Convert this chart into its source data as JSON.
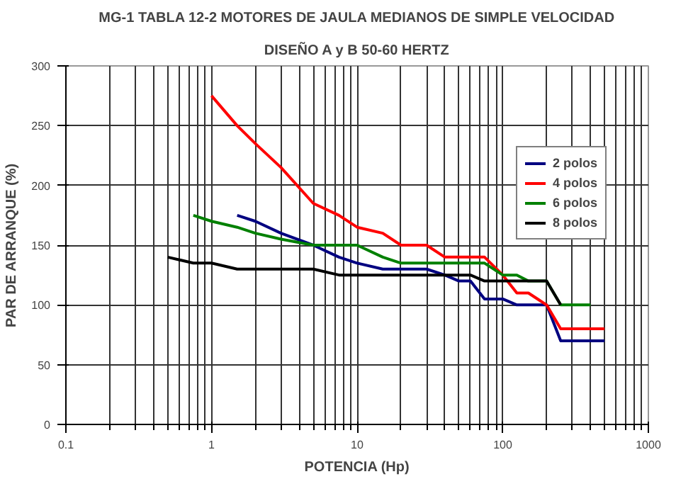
{
  "chart_data": {
    "type": "line",
    "title": "MG-1 TABLA 12-2 MOTORES DE JAULA MEDIANOS DE SIMPLE VELOCIDAD",
    "subtitle": "DISEÑO A y B 50-60 HERTZ",
    "xlabel": "POTENCIA (Hp)",
    "ylabel": "PAR DE ARRANQUE (%)",
    "log": "x",
    "xlim": [
      0.1,
      1000
    ],
    "xticks": [
      0.1,
      1,
      10,
      100,
      1000
    ],
    "ylim": [
      0,
      300
    ],
    "yticks": [
      0,
      50,
      100,
      150,
      200,
      250,
      300
    ],
    "grid": true,
    "legend": "right",
    "marker": "none",
    "line_style": "solid",
    "series": [
      {
        "name": "2 polos",
        "color": "#000080",
        "x": [
          1.5,
          2,
          3,
          5,
          7.5,
          10,
          15,
          20,
          25,
          30,
          40,
          50,
          60,
          75,
          100,
          125,
          150,
          200,
          250,
          300,
          350,
          400,
          450,
          500
        ],
        "values": [
          175,
          170,
          160,
          150,
          140,
          135,
          130,
          130,
          130,
          130,
          125,
          120,
          120,
          105,
          105,
          100,
          100,
          100,
          70,
          70,
          70,
          70,
          70,
          70
        ]
      },
      {
        "name": "4 polos",
        "color": "#ff0000",
        "x": [
          1,
          1.5,
          2,
          3,
          5,
          7.5,
          10,
          15,
          20,
          25,
          30,
          40,
          50,
          60,
          75,
          100,
          125,
          150,
          200,
          250,
          300,
          350,
          400,
          450,
          500
        ],
        "values": [
          275,
          250,
          235,
          215,
          185,
          175,
          165,
          160,
          150,
          150,
          150,
          140,
          140,
          140,
          140,
          125,
          110,
          110,
          100,
          80,
          80,
          80,
          80,
          80,
          80
        ]
      },
      {
        "name": "6 polos",
        "color": "#008000",
        "x": [
          0.75,
          1,
          1.5,
          2,
          3,
          5,
          7.5,
          10,
          15,
          20,
          25,
          30,
          40,
          50,
          60,
          75,
          100,
          125,
          150,
          200,
          250,
          300,
          350,
          400
        ],
        "values": [
          175,
          170,
          165,
          160,
          155,
          150,
          150,
          150,
          140,
          135,
          135,
          135,
          135,
          135,
          135,
          135,
          125,
          125,
          120,
          120,
          100,
          100,
          100,
          100
        ]
      },
      {
        "name": "8 polos",
        "color": "#000000",
        "x": [
          0.5,
          0.75,
          1,
          1.5,
          2,
          3,
          5,
          7.5,
          10,
          15,
          20,
          25,
          30,
          40,
          50,
          60,
          75,
          100,
          125,
          150,
          200,
          250
        ],
        "values": [
          140,
          135,
          135,
          130,
          130,
          130,
          130,
          125,
          125,
          125,
          125,
          125,
          125,
          125,
          125,
          125,
          120,
          120,
          120,
          120,
          120,
          100
        ]
      }
    ]
  }
}
